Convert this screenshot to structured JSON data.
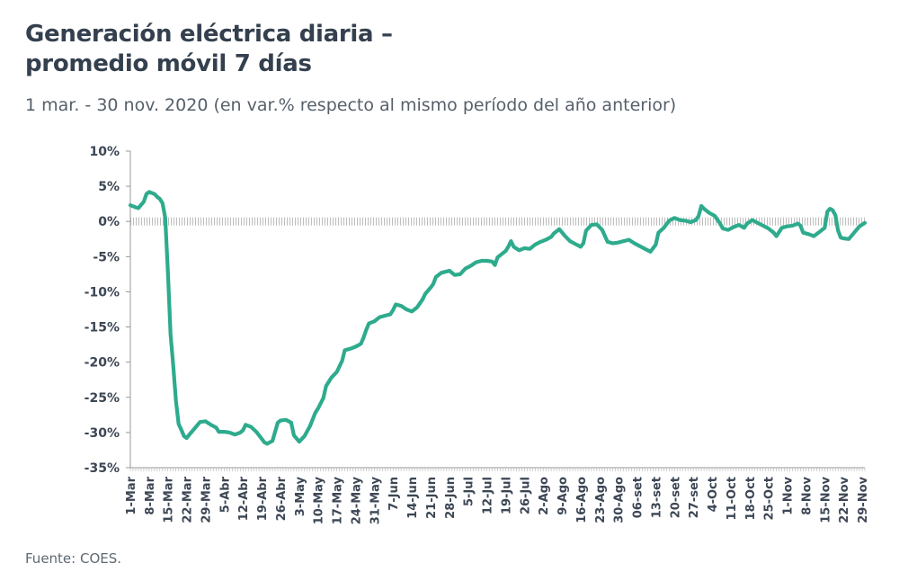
{
  "colors": {
    "line": "#2eab8d",
    "axis": "#999999",
    "zero_line": "#bdbdbd",
    "text": "#3a4757"
  },
  "chart_data": {
    "type": "line",
    "title": [
      "Generación eléctrica diaria –",
      "promedio móvil 7 días"
    ],
    "subtitle": "1 mar. - 30 nov. 2020 (en var.% respecto al mismo período del año anterior)",
    "source": "Fuente: COES.",
    "y_unit": "%",
    "ylim": [
      -35,
      10
    ],
    "yticks": [
      10,
      5,
      0,
      -5,
      -10,
      -15,
      -20,
      -25,
      -30,
      -35
    ],
    "ytick_labels": [
      "10%",
      "5%",
      "0%",
      "-5%",
      "-10%",
      "-15%",
      "-20%",
      "-25%",
      "-30%",
      "-35%"
    ],
    "xlim": [
      "2020-03-01",
      "2020-11-30"
    ],
    "xticks": [
      [
        "2020-03-01",
        "1-Mar"
      ],
      [
        "2020-03-08",
        "8-Mar"
      ],
      [
        "2020-03-15",
        "15-Mar"
      ],
      [
        "2020-03-22",
        "22-Mar"
      ],
      [
        "2020-03-29",
        "29-Mar"
      ],
      [
        "2020-04-05",
        "5-Abr"
      ],
      [
        "2020-04-12",
        "12-Abr"
      ],
      [
        "2020-04-19",
        "19-Abr"
      ],
      [
        "2020-04-26",
        "26-Abr"
      ],
      [
        "2020-05-03",
        "3-May"
      ],
      [
        "2020-05-10",
        "10-May"
      ],
      [
        "2020-05-17",
        "17-May"
      ],
      [
        "2020-05-24",
        "24-May"
      ],
      [
        "2020-05-31",
        "31-May"
      ],
      [
        "2020-06-07",
        "7-Jun"
      ],
      [
        "2020-06-14",
        "14-Jun"
      ],
      [
        "2020-06-21",
        "21-Jun"
      ],
      [
        "2020-06-28",
        "28-Jun"
      ],
      [
        "2020-07-05",
        "5-Jul"
      ],
      [
        "2020-07-12",
        "12-Jul"
      ],
      [
        "2020-07-19",
        "19-Jul"
      ],
      [
        "2020-07-26",
        "26-Jul"
      ],
      [
        "2020-08-02",
        "2-Ago"
      ],
      [
        "2020-08-09",
        "9-Ago"
      ],
      [
        "2020-08-16",
        "16-Ago"
      ],
      [
        "2020-08-23",
        "23-Ago"
      ],
      [
        "2020-08-30",
        "30-Ago"
      ],
      [
        "2020-09-06",
        "06-set"
      ],
      [
        "2020-09-13",
        "13-set"
      ],
      [
        "2020-09-20",
        "20-set"
      ],
      [
        "2020-09-27",
        "27-set"
      ],
      [
        "2020-10-04",
        "4-Oct"
      ],
      [
        "2020-10-11",
        "11-Oct"
      ],
      [
        "2020-10-18",
        "18-Oct"
      ],
      [
        "2020-10-25",
        "25-Oct"
      ],
      [
        "2020-11-01",
        "1-Nov"
      ],
      [
        "2020-11-08",
        "8-Nov"
      ],
      [
        "2020-11-15",
        "15-Nov"
      ],
      [
        "2020-11-22",
        "22-Nov"
      ],
      [
        "2020-11-29",
        "29-Nov"
      ]
    ],
    "grid": false,
    "legend": "none",
    "series": [
      {
        "points": [
          [
            "2020-03-01",
            2.3
          ],
          [
            "2020-03-03",
            2.0
          ],
          [
            "2020-03-04",
            1.9
          ],
          [
            "2020-03-06",
            2.8
          ],
          [
            "2020-03-07",
            3.9
          ],
          [
            "2020-03-08",
            4.2
          ],
          [
            "2020-03-10",
            3.9
          ],
          [
            "2020-03-11",
            3.5
          ],
          [
            "2020-03-12",
            3.2
          ],
          [
            "2020-03-13",
            2.6
          ],
          [
            "2020-03-14",
            0.5
          ],
          [
            "2020-03-15",
            -7.0
          ],
          [
            "2020-03-16",
            -16.0
          ],
          [
            "2020-03-17",
            -20.5
          ],
          [
            "2020-03-18",
            -25.5
          ],
          [
            "2020-03-19",
            -28.8
          ],
          [
            "2020-03-20",
            -29.6
          ],
          [
            "2020-03-21",
            -30.5
          ],
          [
            "2020-03-22",
            -30.8
          ],
          [
            "2020-03-23",
            -30.3
          ],
          [
            "2020-03-25",
            -29.4
          ],
          [
            "2020-03-27",
            -28.5
          ],
          [
            "2020-03-29",
            -28.4
          ],
          [
            "2020-03-31",
            -28.9
          ],
          [
            "2020-04-02",
            -29.3
          ],
          [
            "2020-04-03",
            -29.9
          ],
          [
            "2020-04-05",
            -29.9
          ],
          [
            "2020-04-07",
            -30.0
          ],
          [
            "2020-04-09",
            -30.3
          ],
          [
            "2020-04-11",
            -30.0
          ],
          [
            "2020-04-12",
            -29.7
          ],
          [
            "2020-04-13",
            -28.9
          ],
          [
            "2020-04-15",
            -29.2
          ],
          [
            "2020-04-17",
            -29.9
          ],
          [
            "2020-04-19",
            -30.9
          ],
          [
            "2020-04-20",
            -31.4
          ],
          [
            "2020-04-21",
            -31.6
          ],
          [
            "2020-04-23",
            -31.2
          ],
          [
            "2020-04-24",
            -29.9
          ],
          [
            "2020-04-25",
            -28.6
          ],
          [
            "2020-04-26",
            -28.3
          ],
          [
            "2020-04-28",
            -28.2
          ],
          [
            "2020-04-30",
            -28.6
          ],
          [
            "2020-05-01",
            -30.4
          ],
          [
            "2020-05-03",
            -31.3
          ],
          [
            "2020-05-05",
            -30.5
          ],
          [
            "2020-05-07",
            -29.1
          ],
          [
            "2020-05-09",
            -27.2
          ],
          [
            "2020-05-10",
            -26.6
          ],
          [
            "2020-05-12",
            -25.1
          ],
          [
            "2020-05-13",
            -23.4
          ],
          [
            "2020-05-15",
            -22.2
          ],
          [
            "2020-05-17",
            -21.4
          ],
          [
            "2020-05-19",
            -19.8
          ],
          [
            "2020-05-20",
            -18.3
          ],
          [
            "2020-05-22",
            -18.1
          ],
          [
            "2020-05-24",
            -17.8
          ],
          [
            "2020-05-26",
            -17.4
          ],
          [
            "2020-05-27",
            -16.5
          ],
          [
            "2020-05-28",
            -15.4
          ],
          [
            "2020-05-29",
            -14.5
          ],
          [
            "2020-05-31",
            -14.2
          ],
          [
            "2020-06-02",
            -13.6
          ],
          [
            "2020-06-04",
            -13.4
          ],
          [
            "2020-06-06",
            -13.2
          ],
          [
            "2020-06-07",
            -12.6
          ],
          [
            "2020-06-08",
            -11.8
          ],
          [
            "2020-06-10",
            -12.0
          ],
          [
            "2020-06-12",
            -12.5
          ],
          [
            "2020-06-14",
            -12.8
          ],
          [
            "2020-06-16",
            -12.2
          ],
          [
            "2020-06-18",
            -11.1
          ],
          [
            "2020-06-19",
            -10.3
          ],
          [
            "2020-06-21",
            -9.4
          ],
          [
            "2020-06-22",
            -8.9
          ],
          [
            "2020-06-23",
            -7.9
          ],
          [
            "2020-06-25",
            -7.3
          ],
          [
            "2020-06-27",
            -7.1
          ],
          [
            "2020-06-28",
            -7.0
          ],
          [
            "2020-06-30",
            -7.6
          ],
          [
            "2020-07-02",
            -7.5
          ],
          [
            "2020-07-04",
            -6.7
          ],
          [
            "2020-07-06",
            -6.3
          ],
          [
            "2020-07-08",
            -5.8
          ],
          [
            "2020-07-10",
            -5.6
          ],
          [
            "2020-07-12",
            -5.6
          ],
          [
            "2020-07-14",
            -5.7
          ],
          [
            "2020-07-15",
            -6.2
          ],
          [
            "2020-07-16",
            -5.1
          ],
          [
            "2020-07-18",
            -4.5
          ],
          [
            "2020-07-19",
            -4.2
          ],
          [
            "2020-07-20",
            -3.6
          ],
          [
            "2020-07-21",
            -2.8
          ],
          [
            "2020-07-22",
            -3.6
          ],
          [
            "2020-07-24",
            -4.1
          ],
          [
            "2020-07-26",
            -3.8
          ],
          [
            "2020-07-28",
            -3.9
          ],
          [
            "2020-07-30",
            -3.3
          ],
          [
            "2020-08-01",
            -2.9
          ],
          [
            "2020-08-03",
            -2.6
          ],
          [
            "2020-08-05",
            -2.2
          ],
          [
            "2020-08-06",
            -1.7
          ],
          [
            "2020-08-08",
            -1.1
          ],
          [
            "2020-08-10",
            -2.0
          ],
          [
            "2020-08-12",
            -2.8
          ],
          [
            "2020-08-14",
            -3.2
          ],
          [
            "2020-08-16",
            -3.6
          ],
          [
            "2020-08-17",
            -3.1
          ],
          [
            "2020-08-18",
            -1.3
          ],
          [
            "2020-08-20",
            -0.5
          ],
          [
            "2020-08-22",
            -0.4
          ],
          [
            "2020-08-24",
            -1.2
          ],
          [
            "2020-08-26",
            -2.9
          ],
          [
            "2020-08-28",
            -3.1
          ],
          [
            "2020-08-30",
            -3.0
          ],
          [
            "2020-09-01",
            -2.8
          ],
          [
            "2020-09-03",
            -2.6
          ],
          [
            "2020-09-05",
            -3.1
          ],
          [
            "2020-09-07",
            -3.5
          ],
          [
            "2020-09-09",
            -3.9
          ],
          [
            "2020-09-11",
            -4.3
          ],
          [
            "2020-09-13",
            -3.3
          ],
          [
            "2020-09-14",
            -1.6
          ],
          [
            "2020-09-16",
            -0.9
          ],
          [
            "2020-09-18",
            0.1
          ],
          [
            "2020-09-20",
            0.5
          ],
          [
            "2020-09-22",
            0.2
          ],
          [
            "2020-09-24",
            0.1
          ],
          [
            "2020-09-26",
            -0.1
          ],
          [
            "2020-09-28",
            0.2
          ],
          [
            "2020-09-29",
            0.8
          ],
          [
            "2020-09-30",
            2.2
          ],
          [
            "2020-10-01",
            1.8
          ],
          [
            "2020-10-03",
            1.2
          ],
          [
            "2020-10-05",
            0.8
          ],
          [
            "2020-10-07",
            -0.3
          ],
          [
            "2020-10-08",
            -1.0
          ],
          [
            "2020-10-10",
            -1.2
          ],
          [
            "2020-10-12",
            -0.8
          ],
          [
            "2020-10-14",
            -0.5
          ],
          [
            "2020-10-16",
            -0.9
          ],
          [
            "2020-10-17",
            -0.3
          ],
          [
            "2020-10-19",
            0.2
          ],
          [
            "2020-10-21",
            -0.2
          ],
          [
            "2020-10-23",
            -0.6
          ],
          [
            "2020-10-25",
            -1.0
          ],
          [
            "2020-10-27",
            -1.6
          ],
          [
            "2020-10-28",
            -2.1
          ],
          [
            "2020-10-30",
            -0.9
          ],
          [
            "2020-11-01",
            -0.7
          ],
          [
            "2020-11-03",
            -0.6
          ],
          [
            "2020-11-05",
            -0.3
          ],
          [
            "2020-11-06",
            -0.6
          ],
          [
            "2020-11-07",
            -1.6
          ],
          [
            "2020-11-09",
            -1.8
          ],
          [
            "2020-11-11",
            -2.1
          ],
          [
            "2020-11-13",
            -1.5
          ],
          [
            "2020-11-15",
            -0.9
          ],
          [
            "2020-11-16",
            1.4
          ],
          [
            "2020-11-17",
            1.8
          ],
          [
            "2020-11-18",
            1.6
          ],
          [
            "2020-11-19",
            0.9
          ],
          [
            "2020-11-20",
            -1.3
          ],
          [
            "2020-11-21",
            -2.3
          ],
          [
            "2020-11-22",
            -2.4
          ],
          [
            "2020-11-24",
            -2.5
          ],
          [
            "2020-11-26",
            -1.6
          ],
          [
            "2020-11-28",
            -0.7
          ],
          [
            "2020-11-30",
            -0.2
          ]
        ]
      }
    ]
  }
}
